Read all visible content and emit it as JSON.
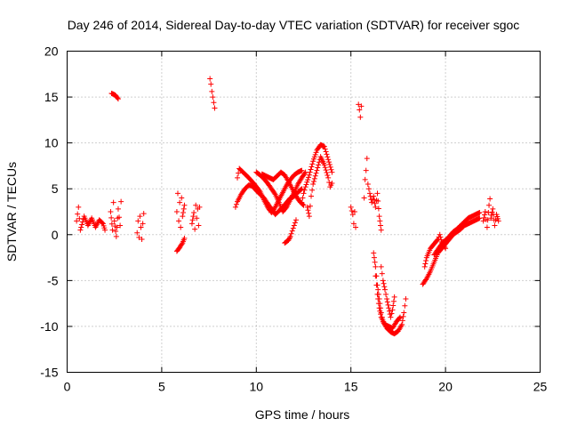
{
  "chart_data": {
    "type": "scatter",
    "title": "Day 246 of 2014, Sidereal Day-to-day VTEC variation (SDTVAR) for receiver sgoc",
    "xlabel": "GPS time / hours",
    "ylabel": "SDTVAR / TECUs",
    "xlim": [
      0,
      25
    ],
    "ylim": [
      -15,
      20
    ],
    "xticks": [
      "0",
      "5",
      "10",
      "15",
      "20",
      "25"
    ],
    "yticks": [
      "-15",
      "-10",
      "-5",
      "0",
      "5",
      "10",
      "15",
      "20"
    ],
    "grid": true,
    "marker": "+",
    "color": "#ff0000",
    "segments": [
      [
        [
          0.5,
          1.5
        ],
        [
          0.6,
          3.0
        ],
        [
          0.7,
          0.5
        ],
        [
          0.9,
          2.0
        ],
        [
          1.1,
          1.0
        ],
        [
          1.3,
          1.8
        ],
        [
          1.5,
          0.8
        ],
        [
          1.7,
          1.6
        ],
        [
          1.9,
          1.2
        ],
        [
          2.0,
          0.5
        ]
      ],
      [
        [
          2.3,
          2.5
        ],
        [
          2.4,
          0.5
        ],
        [
          2.45,
          3.5
        ],
        [
          2.5,
          1.5
        ],
        [
          2.6,
          -0.2
        ],
        [
          2.7,
          2.8
        ],
        [
          2.8,
          1.0
        ],
        [
          2.85,
          3.6
        ]
      ],
      [
        [
          2.35,
          15.4
        ],
        [
          2.55,
          15.2
        ],
        [
          2.7,
          14.8
        ]
      ],
      [
        [
          3.7,
          0.2
        ],
        [
          3.75,
          1.5
        ],
        [
          3.8,
          -0.3
        ],
        [
          3.85,
          2.0
        ],
        [
          3.9,
          0.8
        ],
        [
          3.95,
          -0.5
        ],
        [
          4.0,
          1.2
        ],
        [
          4.05,
          2.3
        ]
      ],
      [
        [
          5.8,
          2.5
        ],
        [
          5.85,
          4.5
        ],
        [
          5.9,
          1.5
        ],
        [
          5.95,
          3.5
        ],
        [
          6.0,
          0.8
        ],
        [
          6.05,
          4.0
        ],
        [
          6.1,
          2.0
        ],
        [
          6.2,
          3.2
        ]
      ],
      [
        [
          5.8,
          -1.8
        ],
        [
          5.95,
          -1.4
        ],
        [
          6.1,
          -0.9
        ],
        [
          6.2,
          -0.4
        ]
      ],
      [
        [
          6.6,
          1.2
        ],
        [
          6.7,
          2.4
        ],
        [
          6.75,
          0.6
        ],
        [
          6.8,
          3.2
        ],
        [
          6.85,
          1.8
        ],
        [
          6.9,
          2.8
        ],
        [
          6.95,
          1.0
        ],
        [
          7.0,
          3.0
        ]
      ],
      [
        [
          7.55,
          17.0
        ],
        [
          7.6,
          16.4
        ],
        [
          7.65,
          15.6
        ],
        [
          7.7,
          15.0
        ],
        [
          7.75,
          14.4
        ],
        [
          7.8,
          13.8
        ]
      ],
      [
        [
          8.9,
          3.0
        ],
        [
          9.0,
          3.6
        ],
        [
          9.2,
          4.4
        ],
        [
          9.4,
          5.0
        ],
        [
          9.6,
          5.4
        ],
        [
          9.8,
          5.3
        ],
        [
          10.0,
          4.8
        ],
        [
          10.2,
          4.4
        ],
        [
          10.4,
          4.0
        ],
        [
          10.6,
          3.4
        ],
        [
          10.8,
          2.8
        ],
        [
          11.0,
          2.2
        ],
        [
          11.2,
          2.6
        ],
        [
          11.4,
          3.0
        ],
        [
          11.6,
          3.5
        ],
        [
          11.8,
          4.0
        ],
        [
          12.0,
          4.2
        ],
        [
          12.2,
          4.6
        ],
        [
          12.4,
          5.0
        ]
      ],
      [
        [
          9.0,
          6.2
        ],
        [
          9.1,
          7.2
        ],
        [
          9.3,
          6.8
        ],
        [
          9.6,
          6.2
        ],
        [
          9.9,
          5.5
        ],
        [
          10.2,
          4.7
        ],
        [
          10.4,
          3.8
        ],
        [
          10.6,
          3.0
        ],
        [
          10.8,
          2.4
        ],
        [
          11.0,
          3.0
        ],
        [
          11.2,
          3.8
        ],
        [
          11.4,
          4.6
        ],
        [
          11.6,
          5.4
        ],
        [
          11.8,
          6.0
        ],
        [
          12.0,
          6.5
        ],
        [
          12.2,
          6.8
        ],
        [
          12.4,
          7.0
        ]
      ],
      [
        [
          10.0,
          6.8
        ],
        [
          10.2,
          6.5
        ],
        [
          10.4,
          6.1
        ],
        [
          10.6,
          5.6
        ],
        [
          10.8,
          5.0
        ],
        [
          11.0,
          4.4
        ],
        [
          11.2,
          3.5
        ],
        [
          11.4,
          2.5
        ],
        [
          11.6,
          3.0
        ],
        [
          11.8,
          3.8
        ],
        [
          12.0,
          4.6
        ],
        [
          12.2,
          5.5
        ],
        [
          12.4,
          6.2
        ],
        [
          12.6,
          6.8
        ]
      ],
      [
        [
          10.3,
          6.6
        ],
        [
          10.6,
          6.3
        ],
        [
          10.9,
          6.0
        ],
        [
          11.1,
          6.4
        ],
        [
          11.3,
          6.8
        ],
        [
          11.5,
          6.5
        ],
        [
          11.7,
          5.8
        ],
        [
          11.9,
          5.0
        ],
        [
          12.1,
          4.2
        ],
        [
          12.3,
          3.6
        ],
        [
          12.5,
          3.2
        ]
      ],
      [
        [
          11.5,
          -0.9
        ],
        [
          11.7,
          -0.6
        ],
        [
          11.8,
          -0.2
        ],
        [
          11.9,
          0.4
        ],
        [
          12.0,
          1.0
        ],
        [
          12.1,
          1.6
        ]
      ],
      [
        [
          12.4,
          3.5
        ],
        [
          12.5,
          4.5
        ],
        [
          12.6,
          5.2
        ],
        [
          12.8,
          6.5
        ],
        [
          13.0,
          8.0
        ],
        [
          13.2,
          9.2
        ],
        [
          13.4,
          9.8
        ],
        [
          13.6,
          9.6
        ],
        [
          13.8,
          8.2
        ],
        [
          14.0,
          6.8
        ]
      ],
      [
        [
          12.7,
          3.0
        ],
        [
          12.8,
          2.0
        ],
        [
          12.9,
          4.2
        ],
        [
          13.0,
          5.5
        ],
        [
          13.2,
          7.0
        ],
        [
          13.4,
          8.5
        ],
        [
          13.6,
          7.6
        ],
        [
          13.8,
          6.2
        ],
        [
          13.9,
          5.2
        ],
        [
          14.0,
          5.6
        ]
      ],
      [
        [
          15.0,
          3.0
        ],
        [
          15.1,
          2.2
        ],
        [
          15.15,
          1.2
        ],
        [
          15.2,
          2.5
        ],
        [
          15.25,
          0.8
        ]
      ],
      [
        [
          15.4,
          14.2
        ],
        [
          15.45,
          13.6
        ],
        [
          15.5,
          12.8
        ],
        [
          15.55,
          14.0
        ]
      ],
      [
        [
          15.7,
          4.0
        ],
        [
          15.75,
          6.0
        ],
        [
          15.8,
          7.0
        ],
        [
          15.85,
          8.3
        ],
        [
          15.9,
          5.5
        ],
        [
          16.0,
          4.5
        ],
        [
          16.1,
          3.5
        ],
        [
          16.2,
          4.2
        ],
        [
          16.3,
          3.0
        ],
        [
          16.4,
          4.5
        ],
        [
          16.5,
          2.0
        ],
        [
          16.6,
          0.5
        ]
      ],
      [
        [
          16.2,
          -2.0
        ],
        [
          16.3,
          -3.5
        ],
        [
          16.4,
          -5.5
        ],
        [
          16.5,
          -7.0
        ],
        [
          16.6,
          -8.5
        ],
        [
          16.7,
          -9.5
        ],
        [
          16.9,
          -10.2
        ],
        [
          17.1,
          -10.6
        ],
        [
          17.3,
          -10.8
        ],
        [
          17.5,
          -10.5
        ],
        [
          17.7,
          -9.8
        ],
        [
          17.8,
          -8.5
        ],
        [
          17.9,
          -7.0
        ]
      ],
      [
        [
          16.3,
          -4.5
        ],
        [
          16.4,
          -6.5
        ],
        [
          16.5,
          -8.0
        ],
        [
          16.6,
          -9.0
        ],
        [
          16.8,
          -9.8
        ],
        [
          17.0,
          -10.0
        ],
        [
          17.2,
          -10.2
        ],
        [
          17.4,
          -9.5
        ],
        [
          17.6,
          -9.0
        ]
      ],
      [
        [
          16.6,
          -3.5
        ],
        [
          16.7,
          -5.0
        ],
        [
          16.8,
          -6.0
        ],
        [
          16.9,
          -7.0
        ],
        [
          17.0,
          -8.0
        ],
        [
          17.1,
          -9.0
        ],
        [
          17.2,
          -8.2
        ],
        [
          17.3,
          -6.8
        ]
      ],
      [
        [
          18.8,
          -5.4
        ],
        [
          19.0,
          -4.8
        ],
        [
          19.2,
          -4.0
        ],
        [
          19.4,
          -3.0
        ],
        [
          19.6,
          -2.0
        ],
        [
          19.8,
          -1.5
        ],
        [
          20.0,
          -1.0
        ],
        [
          20.2,
          -0.5
        ],
        [
          20.4,
          0.0
        ],
        [
          20.6,
          0.3
        ],
        [
          20.8,
          0.6
        ],
        [
          21.0,
          1.0
        ],
        [
          21.2,
          1.2
        ],
        [
          21.4,
          1.4
        ],
        [
          21.6,
          1.6
        ],
        [
          21.8,
          1.8
        ]
      ],
      [
        [
          18.9,
          -3.5
        ],
        [
          19.0,
          -2.5
        ],
        [
          19.2,
          -1.5
        ],
        [
          19.4,
          -1.0
        ],
        [
          19.6,
          -0.5
        ],
        [
          19.7,
          0.0
        ],
        [
          19.8,
          -0.8
        ],
        [
          20.0,
          -1.5
        ]
      ],
      [
        [
          19.4,
          -2.2
        ],
        [
          19.6,
          -1.6
        ],
        [
          19.8,
          -1.0
        ],
        [
          20.0,
          -0.6
        ],
        [
          20.2,
          -0.2
        ],
        [
          20.4,
          0.3
        ],
        [
          20.6,
          0.6
        ],
        [
          20.8,
          1.0
        ],
        [
          21.0,
          1.4
        ],
        [
          21.2,
          1.8
        ],
        [
          21.4,
          2.0
        ],
        [
          21.6,
          2.2
        ],
        [
          21.8,
          2.4
        ]
      ],
      [
        [
          22.0,
          1.5
        ],
        [
          22.1,
          2.5
        ],
        [
          22.2,
          0.8
        ],
        [
          22.3,
          3.2
        ],
        [
          22.35,
          3.9
        ],
        [
          22.4,
          1.8
        ],
        [
          22.5,
          2.8
        ],
        [
          22.6,
          1.0
        ],
        [
          22.7,
          2.2
        ],
        [
          22.8,
          1.5
        ]
      ]
    ]
  }
}
